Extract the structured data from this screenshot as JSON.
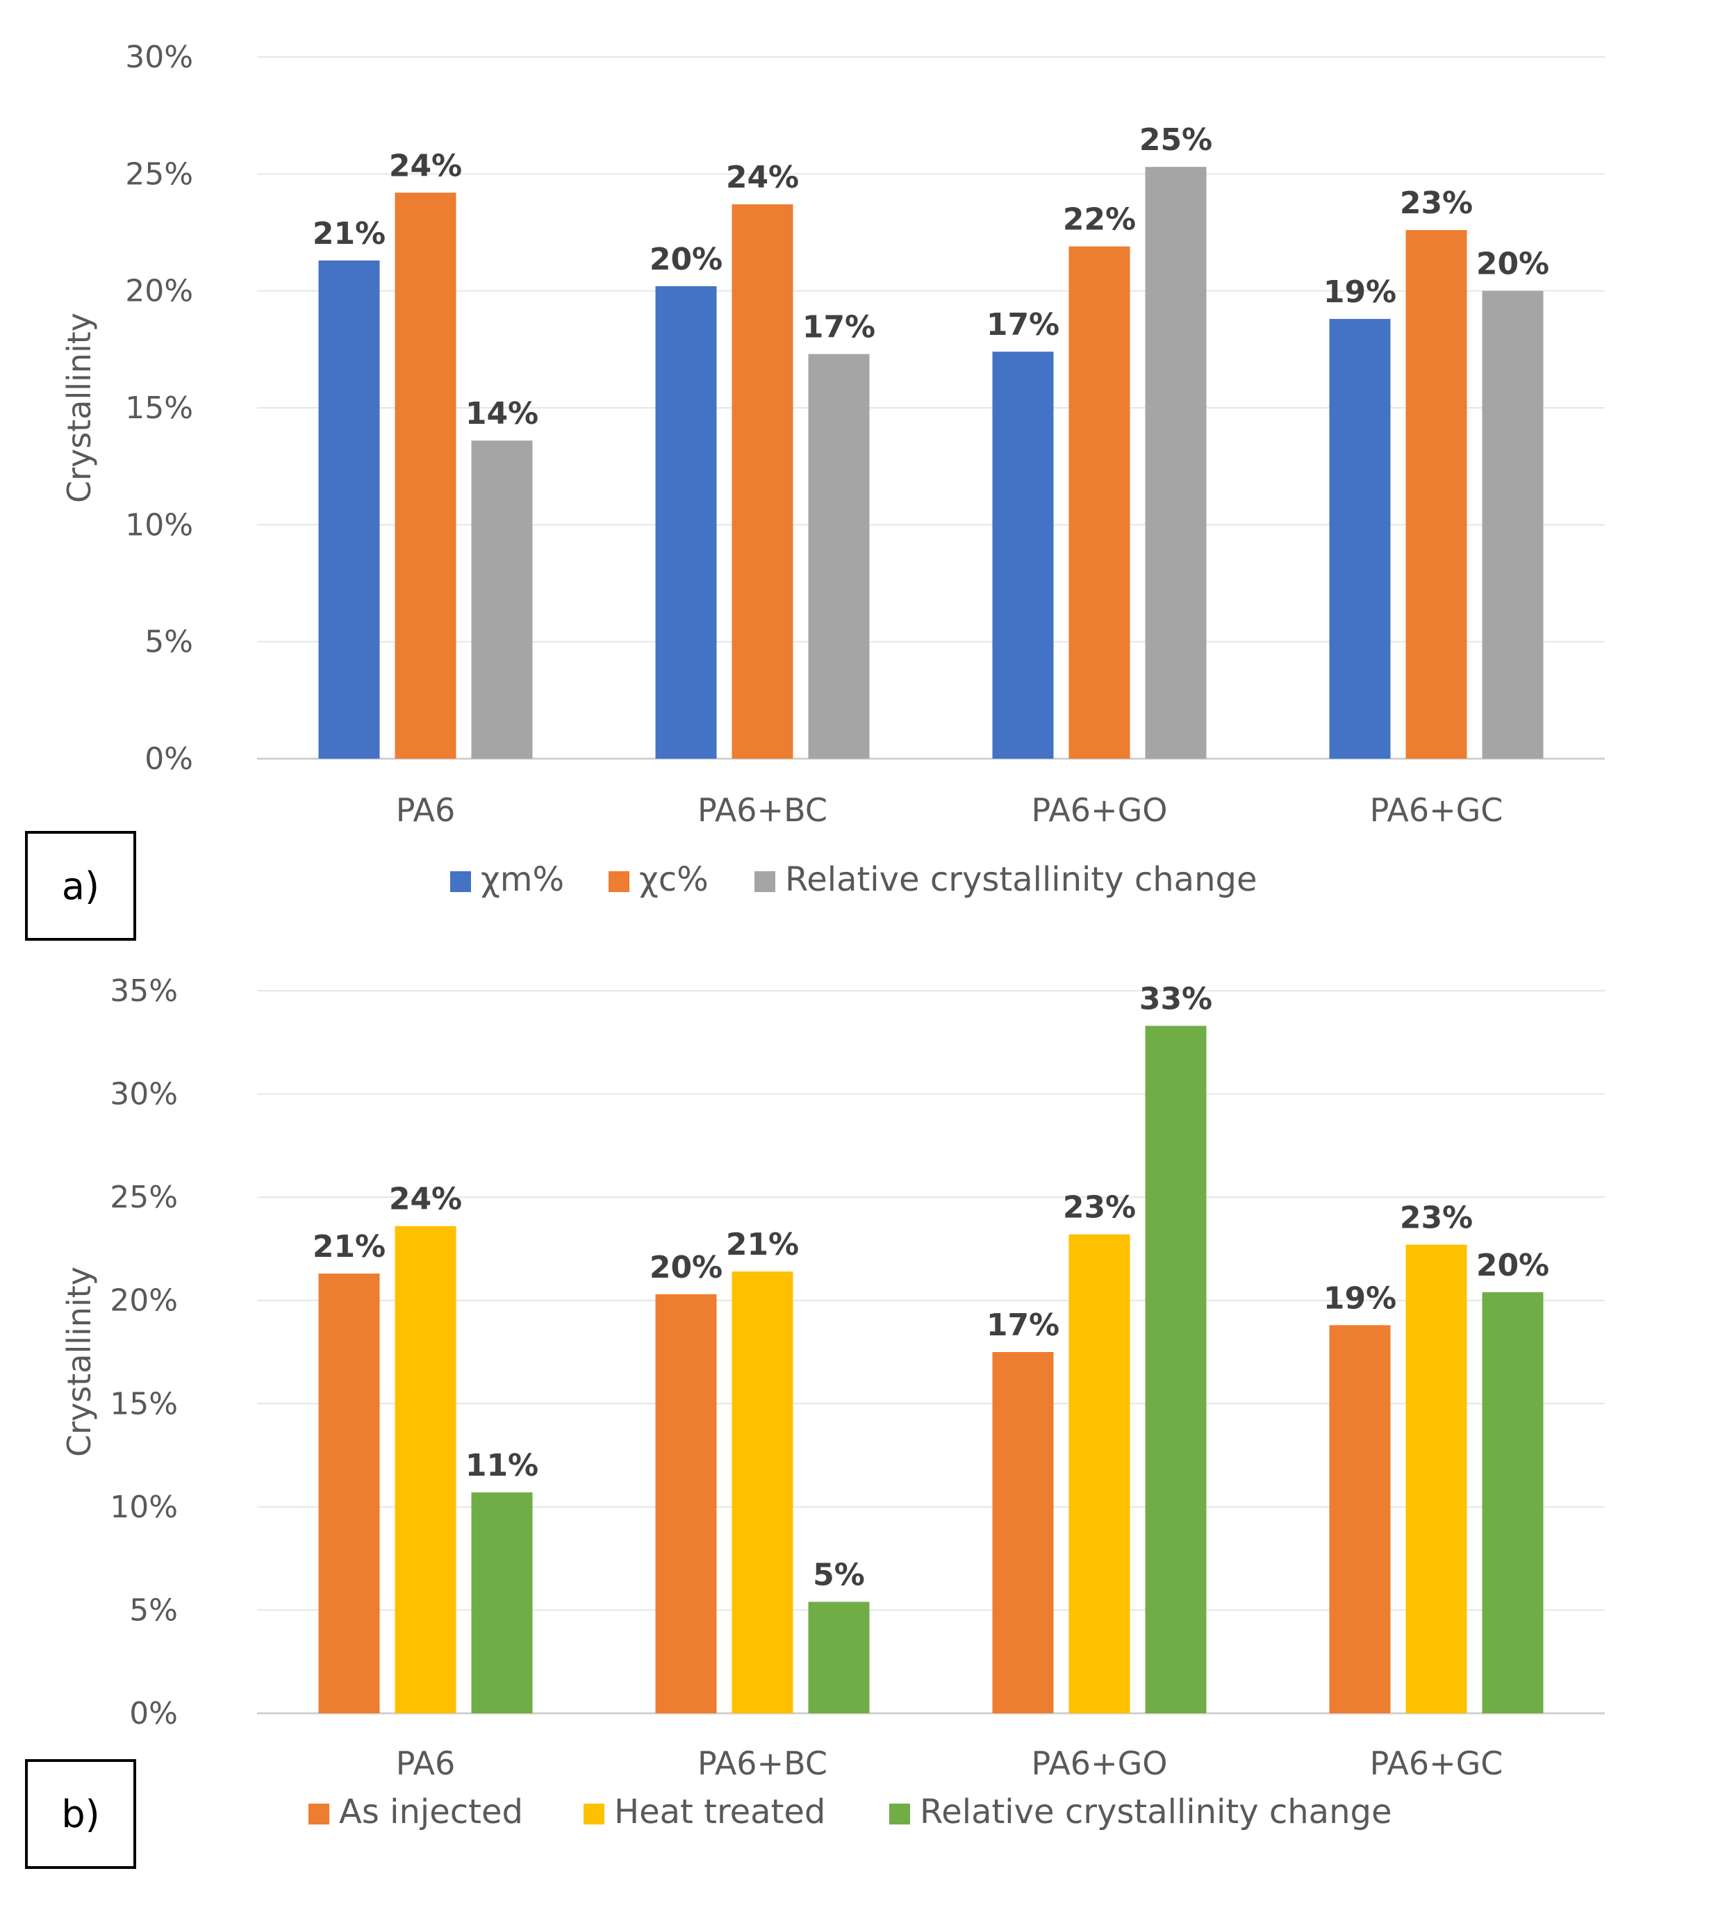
{
  "panels": [
    {
      "tag": "a)",
      "chart_data": {
        "type": "bar",
        "categories": [
          "PA6",
          "PA6+BC",
          "PA6+GO",
          "PA6+GC"
        ],
        "series": [
          {
            "name": "χm%",
            "values": [
              21.3,
              20.2,
              17.4,
              18.8
            ],
            "labels": [
              "21%",
              "20%",
              "17%",
              "19%"
            ],
            "color": "#4472C4"
          },
          {
            "name": "χc%",
            "values": [
              24.2,
              23.7,
              21.9,
              22.6
            ],
            "labels": [
              "24%",
              "24%",
              "22%",
              "23%"
            ],
            "color": "#ED7D31"
          },
          {
            "name": "Relative crystallinity change",
            "values": [
              13.6,
              17.3,
              25.3,
              20.0
            ],
            "labels": [
              "14%",
              "17%",
              "25%",
              "20%"
            ],
            "color": "#A5A5A5"
          }
        ],
        "ylabel": "Crystallinity",
        "ylim": [
          0,
          30
        ],
        "yticks": [
          "0%",
          "5%",
          "10%",
          "15%",
          "20%",
          "25%",
          "30%"
        ],
        "grid": true,
        "legend_position": "bottom"
      }
    },
    {
      "tag": "b)",
      "chart_data": {
        "type": "bar",
        "categories": [
          "PA6",
          "PA6+BC",
          "PA6+GO",
          "PA6+GC"
        ],
        "series": [
          {
            "name": "As injected",
            "values": [
              21.3,
              20.3,
              17.5,
              18.8
            ],
            "labels": [
              "21%",
              "20%",
              "17%",
              "19%"
            ],
            "color": "#ED7D31"
          },
          {
            "name": "Heat treated",
            "values": [
              23.6,
              21.4,
              23.2,
              22.7
            ],
            "labels": [
              "24%",
              "21%",
              "23%",
              "23%"
            ],
            "color": "#FFC000"
          },
          {
            "name": "Relative crystallinity change",
            "values": [
              10.7,
              5.4,
              33.3,
              20.4
            ],
            "labels": [
              "11%",
              "5%",
              "33%",
              "20%"
            ],
            "color": "#70AD47"
          }
        ],
        "ylabel": "Crystallinity",
        "ylim": [
          0,
          35
        ],
        "yticks": [
          "0%",
          "5%",
          "10%",
          "15%",
          "20%",
          "25%",
          "30%",
          "35%"
        ],
        "grid": true,
        "legend_position": "bottom"
      }
    }
  ]
}
